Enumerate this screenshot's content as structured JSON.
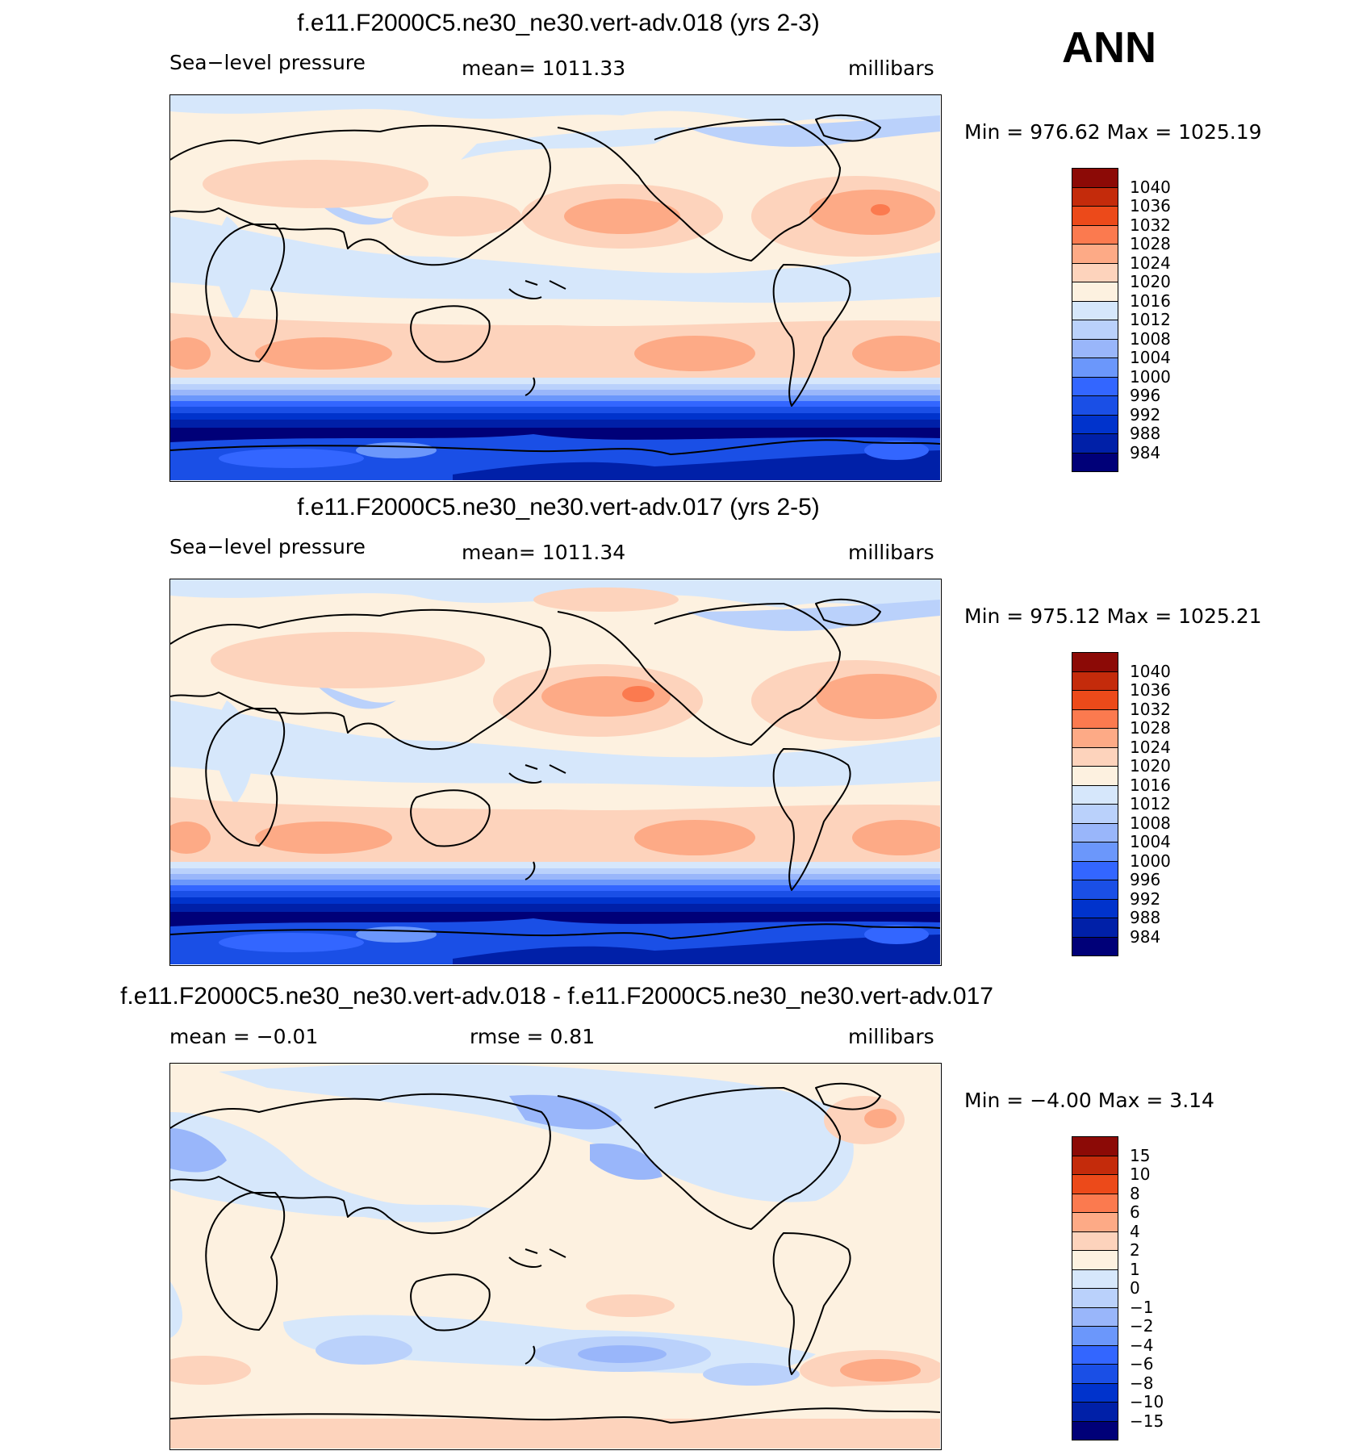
{
  "season": "ANN",
  "colors": {
    "slp_scale": [
      "#000078",
      "#0020a8",
      "#0033cc",
      "#1a4fe6",
      "#3366ff",
      "#6b97fb",
      "#99b6fa",
      "#bad1fb",
      "#d6e7fb",
      "#fdf1e0",
      "#fdd3bc",
      "#fdaa86",
      "#fb7a4f",
      "#ec4a1a",
      "#c42b0b",
      "#8c0a06"
    ],
    "diff_scale": [
      "#000078",
      "#0020a8",
      "#0033cc",
      "#1a4fe6",
      "#3366ff",
      "#6b97fb",
      "#99b6fa",
      "#bad1fb",
      "#d6e7fb",
      "#fdf1e0",
      "#fdd3bc",
      "#fdaa86",
      "#fb7a4f",
      "#ec4a1a",
      "#c42b0b",
      "#8c0a06"
    ],
    "coastline": "#000000"
  },
  "panels": [
    {
      "title": "f.e11.F2000C5.ne30_ne30.vert-adv.018 (yrs 2-3)",
      "variable": "Sea−level pressure",
      "stat": "mean=  1011.33",
      "units": "millibars",
      "minmax": "Min  =  976.62  Max  =  1025.19",
      "scale": "slp",
      "labels": [
        "1040",
        "1036",
        "1032",
        "1028",
        "1024",
        "1020",
        "1016",
        "1012",
        "1008",
        "1004",
        "1000",
        "996",
        "992",
        "988",
        "984"
      ]
    },
    {
      "title": "f.e11.F2000C5.ne30_ne30.vert-adv.017 (yrs 2-5)",
      "variable": "Sea−level pressure",
      "stat": "mean=  1011.34",
      "units": "millibars",
      "minmax": "Min  =  975.12  Max  =  1025.21",
      "scale": "slp",
      "labels": [
        "1040",
        "1036",
        "1032",
        "1028",
        "1024",
        "1020",
        "1016",
        "1012",
        "1008",
        "1004",
        "1000",
        "996",
        "992",
        "988",
        "984"
      ]
    },
    {
      "title": "f.e11.F2000C5.ne30_ne30.vert-adv.018 - f.e11.F2000C5.ne30_ne30.vert-adv.017",
      "variable": "mean  =    −0.01",
      "stat": "rmse  =      0.81",
      "units": "millibars",
      "minmax": "Min  =    −4.00  Max  =      3.14",
      "scale": "diff",
      "labels": [
        "15",
        "10",
        "8",
        "6",
        "4",
        "2",
        "1",
        "0",
        "−1",
        "−2",
        "−4",
        "−6",
        "−8",
        "−10",
        "−15"
      ]
    }
  ]
}
